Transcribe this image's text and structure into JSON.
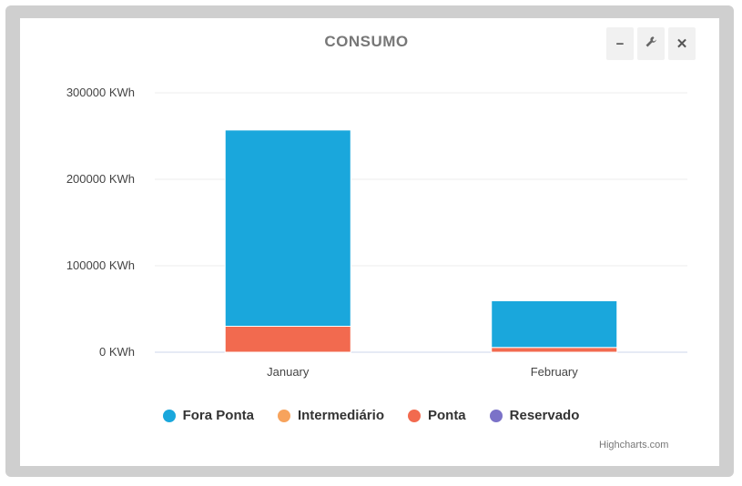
{
  "chart_data": {
    "type": "bar",
    "stacked": true,
    "title": "CONSUMO",
    "categories": [
      "January",
      "February"
    ],
    "series": [
      {
        "name": "Fora Ponta",
        "color": "#1aa7dc",
        "values": [
          227000,
          54000
        ]
      },
      {
        "name": "Intermediário",
        "color": "#f7a35c",
        "values": [
          0,
          0
        ]
      },
      {
        "name": "Ponta",
        "color": "#f26a4f",
        "values": [
          30000,
          5500
        ]
      },
      {
        "name": "Reservado",
        "color": "#7b72c8",
        "values": [
          0,
          0
        ]
      }
    ],
    "y_ticks": [
      "0 KWh",
      "100000 KWh",
      "200000 KWh",
      "300000 KWh"
    ],
    "ylim": [
      0,
      300000
    ],
    "grid": true,
    "legend_position": "bottom"
  },
  "toolbar": {
    "minimize_icon": "minus-icon",
    "settings_icon": "wrench-icon",
    "close_icon": "close-icon",
    "minimize_glyph": "−",
    "settings_glyph": "🔧",
    "close_glyph": "✕"
  },
  "credits": "Highcharts.com"
}
